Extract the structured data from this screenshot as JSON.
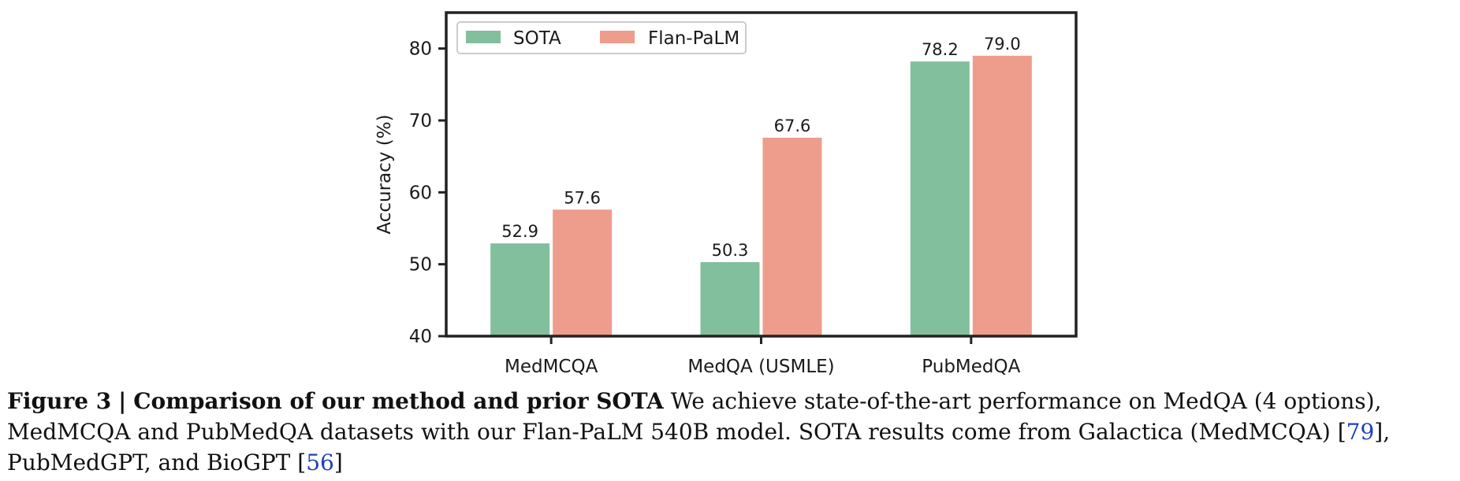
{
  "chart_data": {
    "type": "bar",
    "categories": [
      "MedMCQA",
      "MedQA (USMLE)",
      "PubMedQA"
    ],
    "series": [
      {
        "name": "SOTA",
        "color": "#82bf9c",
        "values": [
          52.9,
          50.3,
          78.2
        ]
      },
      {
        "name": "Flan-PaLM",
        "color": "#ee9c8c",
        "values": [
          57.6,
          67.6,
          79.0
        ]
      }
    ],
    "data_labels": [
      [
        "52.9",
        "50.3",
        "78.2"
      ],
      [
        "57.6",
        "67.6",
        "79.0"
      ]
    ],
    "ylabel": "Accuracy (%)",
    "ylim": [
      40,
      85
    ],
    "yticks": [
      40,
      50,
      60,
      70,
      80
    ],
    "legend_position": "top-left",
    "grid": false
  },
  "caption": {
    "figure_label": "Figure 3",
    "separator": "|",
    "title": "Comparison of our method and prior SOTA",
    "text_1": "We achieve state-of-the-art performance on MedQA (4 options), MedMCQA and PubMedQA datasets with our Flan-PaLM 540B model. SOTA results come from Galactica (MedMCQA) [",
    "ref_1": "79",
    "text_2": "], PubMedGPT, and BioGPT [",
    "ref_2": "56",
    "text_3": "]"
  }
}
